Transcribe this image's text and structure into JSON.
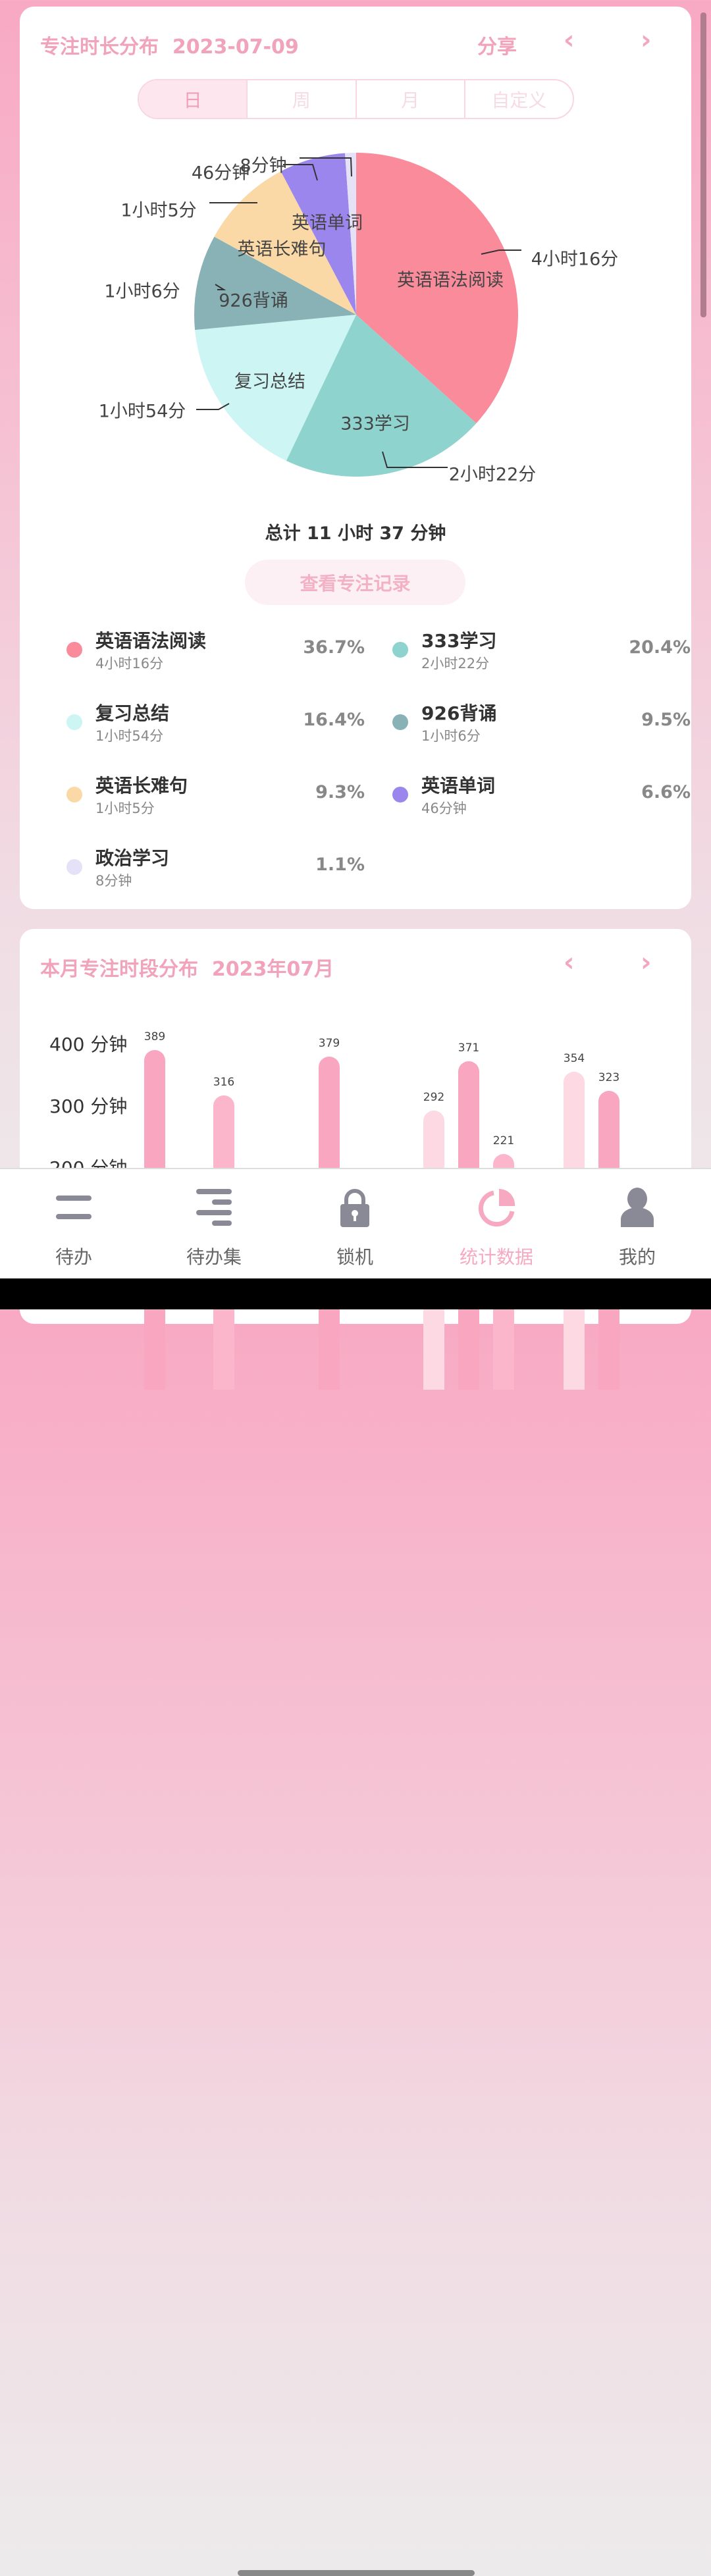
{
  "card1": {
    "title": "专注时长分布",
    "date": "2023-07-09",
    "share": "分享",
    "prev": "‹",
    "next": "›",
    "tabs": [
      {
        "label": "日",
        "active": true
      },
      {
        "label": "周"
      },
      {
        "label": "月"
      },
      {
        "label": "自定义"
      }
    ],
    "total": "总计 11 小时 37 分钟",
    "records_button": "查看专注记录",
    "items": [
      {
        "name": "英语语法阅读",
        "duration": "4小时16分",
        "percent": "36.7%",
        "value": 36.7,
        "color": "#f98b9b"
      },
      {
        "name": "333学习",
        "duration": "2小时22分",
        "percent": "20.4%",
        "value": 20.4,
        "color": "#8fd3cf"
      },
      {
        "name": "复习总结",
        "duration": "1小时54分",
        "percent": "16.4%",
        "value": 16.4,
        "color": "#ccf5f4"
      },
      {
        "name": "926背诵",
        "duration": "1小时6分",
        "percent": "9.5%",
        "value": 9.5,
        "color": "#88b2b6"
      },
      {
        "name": "英语长难句",
        "duration": "1小时5分",
        "percent": "9.3%",
        "value": 9.3,
        "color": "#fad9a6"
      },
      {
        "name": "英语单词",
        "duration": "46分钟",
        "percent": "6.6%",
        "value": 6.6,
        "color": "#9b86ee"
      },
      {
        "name": "政治学习",
        "duration": "8分钟",
        "percent": "1.1%",
        "value": 1.1,
        "color": "#e5e1f7"
      }
    ],
    "pie_outer_labels": [
      "4小时16分",
      "2小时22分",
      "1小时54分",
      "1小时6分",
      "1小时5分",
      "46分钟",
      "8分钟"
    ]
  },
  "card2": {
    "title": "本月专注时段分布",
    "month": "2023年07月",
    "prev": "‹",
    "next": "›"
  },
  "chart_data": {
    "type": "bar",
    "yticks": [
      "400 分钟",
      "300 分钟",
      "200 分钟"
    ],
    "values": [
      389,
      316,
      379,
      292,
      371,
      221,
      354,
      323
    ],
    "colors": [
      "#f9a6c0",
      "#fbb6cc",
      "#f9a6c0",
      "#fcd9e3",
      "#f9a6c0",
      "#fbb6cc",
      "#fcd9e3",
      "#f9a6c0"
    ]
  },
  "nav": [
    {
      "label": "待办"
    },
    {
      "label": "待办集"
    },
    {
      "label": "锁机"
    },
    {
      "label": "统计数据",
      "active": true
    },
    {
      "label": "我的"
    }
  ]
}
